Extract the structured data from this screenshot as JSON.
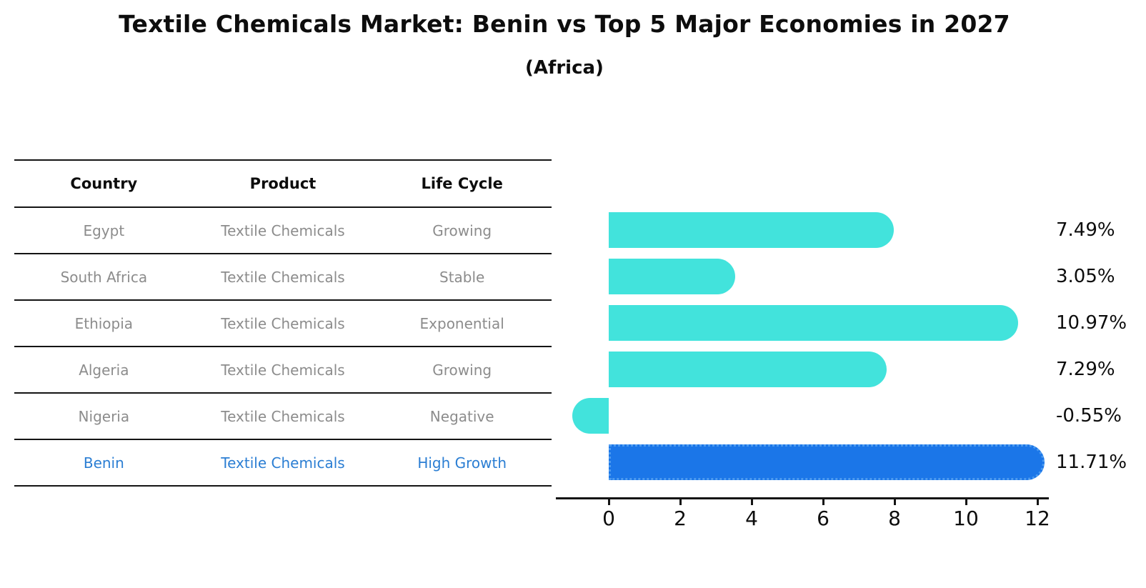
{
  "title": "Textile Chemicals Market: Benin vs Top 5 Major Economies in 2027",
  "subtitle": "(Africa)",
  "colors": {
    "bar_default": "#42E3DC",
    "bar_highlight": "#1B76E8",
    "bar_highlight_border": "#4C9BF0",
    "row_text": "#8c8c8c",
    "highlight_text": "#2b7ed3",
    "line": "#141414"
  },
  "table": {
    "headers": [
      "Country",
      "Product",
      "Life Cycle"
    ],
    "rows": [
      {
        "country": "Egypt",
        "product": "Textile Chemicals",
        "life_cycle": "Growing",
        "highlight": false
      },
      {
        "country": "South Africa",
        "product": "Textile Chemicals",
        "life_cycle": "Stable",
        "highlight": false
      },
      {
        "country": "Ethiopia",
        "product": "Textile Chemicals",
        "life_cycle": "Exponential",
        "highlight": false
      },
      {
        "country": "Algeria",
        "product": "Textile Chemicals",
        "life_cycle": "Growing",
        "highlight": false
      },
      {
        "country": "Nigeria",
        "product": "Textile Chemicals",
        "life_cycle": "Negative",
        "highlight": false
      },
      {
        "country": "Benin",
        "product": "Textile Chemicals",
        "life_cycle": "High Growth",
        "highlight": true
      }
    ]
  },
  "chart_data": {
    "type": "bar",
    "orientation": "horizontal",
    "title": "Textile Chemicals Market: Benin vs Top 5 Major Economies in 2027 (Africa)",
    "categories": [
      "Egypt",
      "South Africa",
      "Ethiopia",
      "Algeria",
      "Nigeria",
      "Benin"
    ],
    "values": [
      7.49,
      3.05,
      10.97,
      7.29,
      -0.55,
      11.71
    ],
    "value_labels": [
      "7.49%",
      "3.05%",
      "10.97%",
      "7.29%",
      "-0.55%",
      "11.71%"
    ],
    "unit": "percent CAGR",
    "highlight_index": 5,
    "xticks": [
      "0",
      "2",
      "4",
      "6",
      "8",
      "10",
      "12"
    ],
    "xtick_values": [
      0,
      2,
      4,
      6,
      8,
      10,
      12
    ],
    "xlim": [
      -1.5,
      12.3
    ],
    "grid": false,
    "legend": null
  }
}
